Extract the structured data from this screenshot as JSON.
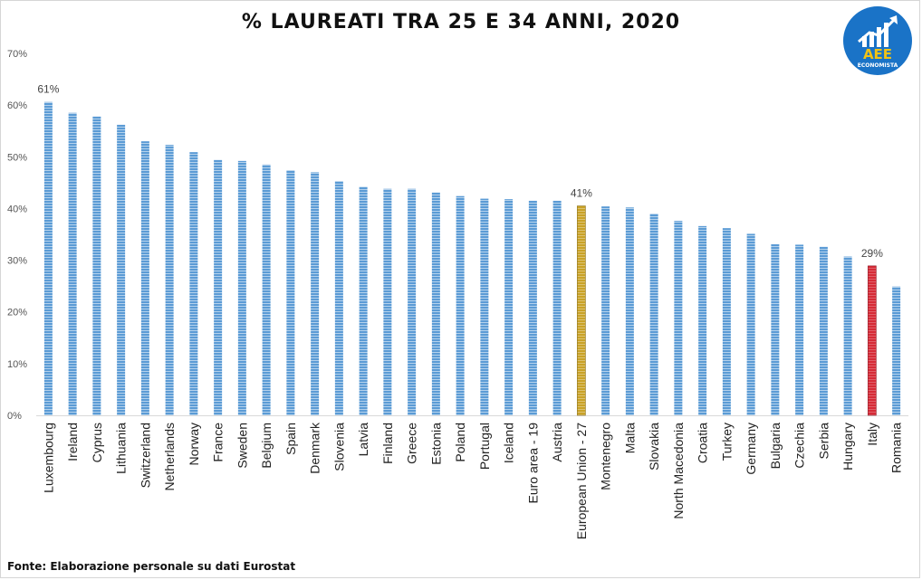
{
  "title": "% LAUREATI TRA 25 E 34 ANNI, 2020",
  "source": "Fonte: Elaborazione personale su dati Eurostat",
  "logo": {
    "text": "AEE",
    "subtext": "ECONOMISTA",
    "color": "#1a73c7",
    "accent": "#f2c314"
  },
  "chart_data": {
    "type": "bar",
    "ylim": [
      0,
      70
    ],
    "yticks": [
      "0%",
      "10%",
      "20%",
      "30%",
      "40%",
      "50%",
      "60%",
      "70%"
    ],
    "categories": [
      "Luxembourg",
      "Ireland",
      "Cyprus",
      "Lithuania",
      "Switzerland",
      "Netherlands",
      "Norway",
      "France",
      "Sweden",
      "Belgium",
      "Spain",
      "Denmark",
      "Slovenia",
      "Latvia",
      "Finland",
      "Greece",
      "Estonia",
      "Poland",
      "Portugal",
      "Iceland",
      "Euro area - 19",
      "Austria",
      "European Union - 27",
      "Montenegro",
      "Malta",
      "Slovakia",
      "North Macedonia",
      "Croatia",
      "Turkey",
      "Germany",
      "Bulgaria",
      "Czechia",
      "Serbia",
      "Hungary",
      "Italy",
      "Romania"
    ],
    "values": [
      60.6,
      58.5,
      57.8,
      56.2,
      53.0,
      52.3,
      50.9,
      49.4,
      49.2,
      48.5,
      47.4,
      47.0,
      45.3,
      44.2,
      43.8,
      43.8,
      43.1,
      42.4,
      41.9,
      41.8,
      41.5,
      41.5,
      40.5,
      40.4,
      40.2,
      39.0,
      37.6,
      36.6,
      36.2,
      35.1,
      33.1,
      33.0,
      32.6,
      30.7,
      28.9,
      24.9
    ],
    "data_labels": [
      {
        "index": 0,
        "text": "61%"
      },
      {
        "index": 22,
        "text": "41%"
      },
      {
        "index": 34,
        "text": "29%"
      }
    ],
    "colors": {
      "default": "#5b9bd5",
      "highlight_eu": "#c9a227",
      "highlight_italy": "#d62b37",
      "axis": "#d9d9d9"
    },
    "grid": false
  }
}
